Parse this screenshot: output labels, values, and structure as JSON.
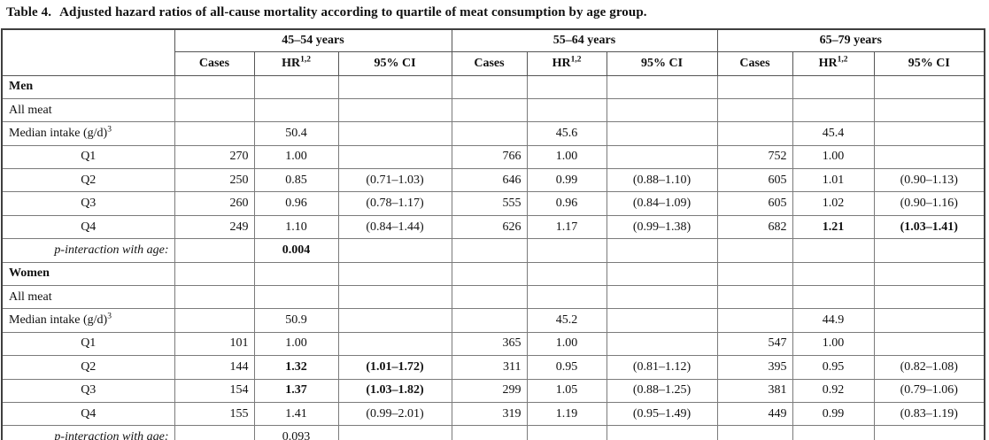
{
  "title": {
    "prefix": "Table 4.",
    "text": "Adjusted hazard ratios of all-cause mortality according to quartile of meat consumption by age group."
  },
  "table": {
    "age_groups": [
      "45–54 years",
      "55–64 years",
      "65–79 years"
    ],
    "sub_headers": {
      "cases": "Cases",
      "hr": "HR",
      "hr_sup": "1,2",
      "ci": "95% CI"
    },
    "rows": [
      {
        "type": "section",
        "label": "Men",
        "cells": [
          "",
          "",
          "",
          "",
          "",
          "",
          "",
          "",
          ""
        ]
      },
      {
        "type": "plain",
        "label": "All meat",
        "cells": [
          "",
          "",
          "",
          "",
          "",
          "",
          "",
          "",
          ""
        ]
      },
      {
        "type": "plain",
        "label": "Median intake (g/d)",
        "sup": "3",
        "cells": [
          "",
          "50.4",
          "",
          "",
          "45.6",
          "",
          "",
          "45.4",
          ""
        ]
      },
      {
        "type": "quartile",
        "label": "Q1",
        "cells": [
          "270",
          "1.00",
          "",
          "766",
          "1.00",
          "",
          "752",
          "1.00",
          ""
        ]
      },
      {
        "type": "quartile",
        "label": "Q2",
        "cells": [
          "250",
          "0.85",
          "(0.71–1.03)",
          "646",
          "0.99",
          "(0.88–1.10)",
          "605",
          "1.01",
          "(0.90–1.13)"
        ]
      },
      {
        "type": "quartile",
        "label": "Q3",
        "cells": [
          "260",
          "0.96",
          "(0.78–1.17)",
          "555",
          "0.96",
          "(0.84–1.09)",
          "605",
          "1.02",
          "(0.90–1.16)"
        ]
      },
      {
        "type": "quartile",
        "label": "Q4",
        "cells": [
          "249",
          "1.10",
          "(0.84–1.44)",
          "626",
          "1.17",
          "(0.99–1.38)",
          "682",
          "1.21",
          "(1.03–1.41)"
        ],
        "bold": [
          7,
          8
        ]
      },
      {
        "type": "pinteraction",
        "label": "p-interaction with age:",
        "cells": [
          "",
          "0.004",
          "",
          "",
          "",
          "",
          "",
          "",
          ""
        ],
        "bold": [
          1
        ]
      },
      {
        "type": "section",
        "label": "Women",
        "cells": [
          "",
          "",
          "",
          "",
          "",
          "",
          "",
          "",
          ""
        ]
      },
      {
        "type": "plain",
        "label": "All meat",
        "cells": [
          "",
          "",
          "",
          "",
          "",
          "",
          "",
          "",
          ""
        ]
      },
      {
        "type": "plain",
        "label": "Median intake (g/d)",
        "sup": "3",
        "cells": [
          "",
          "50.9",
          "",
          "",
          "45.2",
          "",
          "",
          "44.9",
          ""
        ]
      },
      {
        "type": "quartile",
        "label": "Q1",
        "cells": [
          "101",
          "1.00",
          "",
          "365",
          "1.00",
          "",
          "547",
          "1.00",
          ""
        ]
      },
      {
        "type": "quartile",
        "label": "Q2",
        "cells": [
          "144",
          "1.32",
          "(1.01–1.72)",
          "311",
          "0.95",
          "(0.81–1.12)",
          "395",
          "0.95",
          "(0.82–1.08)"
        ],
        "bold": [
          1,
          2
        ]
      },
      {
        "type": "quartile",
        "label": "Q3",
        "cells": [
          "154",
          "1.37",
          "(1.03–1.82)",
          "299",
          "1.05",
          "(0.88–1.25)",
          "381",
          "0.92",
          "(0.79–1.06)"
        ],
        "bold": [
          1,
          2
        ]
      },
      {
        "type": "quartile",
        "label": "Q4",
        "cells": [
          "155",
          "1.41",
          "(0.99–2.01)",
          "319",
          "1.19",
          "(0.95–1.49)",
          "449",
          "0.99",
          "(0.83–1.19)"
        ]
      },
      {
        "type": "pinteraction",
        "label": "p-interaction with age:",
        "cells": [
          "",
          "0.093",
          "",
          "",
          "",
          "",
          "",
          "",
          ""
        ]
      }
    ]
  }
}
